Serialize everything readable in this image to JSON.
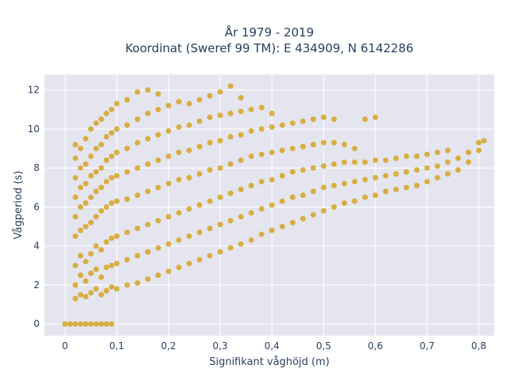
{
  "chart_data": {
    "type": "scatter",
    "title_line1": "År 1979 - 2019",
    "title_line2": "Koordinat (Sweref 99 TM): E 434909, N 6142286",
    "xlabel": "Signifikant våghöjd (m)",
    "ylabel": "Vågperiod (s)",
    "xlim": [
      -0.04,
      0.83
    ],
    "ylim": [
      -0.6,
      12.8
    ],
    "x_ticks": [
      0,
      0.1,
      0.2,
      0.3,
      0.4,
      0.5,
      0.6,
      0.7,
      0.8
    ],
    "x_tick_labels": [
      "0",
      "0,1",
      "0,2",
      "0,3",
      "0,4",
      "0,5",
      "0,6",
      "0,7",
      "0,8"
    ],
    "y_ticks": [
      0,
      2,
      4,
      6,
      8,
      10,
      12
    ],
    "y_tick_labels": [
      "0",
      "2",
      "4",
      "6",
      "8",
      "10",
      "12"
    ],
    "grid": true,
    "point_color": "#d4a017",
    "plot_bgcolor": "#e5e5f0",
    "points": [
      [
        0.0,
        0
      ],
      [
        0.01,
        0
      ],
      [
        0.02,
        0
      ],
      [
        0.03,
        0
      ],
      [
        0.04,
        0
      ],
      [
        0.05,
        0
      ],
      [
        0.06,
        0
      ],
      [
        0.07,
        0
      ],
      [
        0.08,
        0
      ],
      [
        0.09,
        0
      ],
      [
        0.02,
        1.3
      ],
      [
        0.02,
        2.0
      ],
      [
        0.02,
        3.0
      ],
      [
        0.02,
        4.5
      ],
      [
        0.02,
        5.5
      ],
      [
        0.02,
        6.5
      ],
      [
        0.02,
        7.5
      ],
      [
        0.02,
        8.5
      ],
      [
        0.02,
        9.2
      ],
      [
        0.03,
        1.5
      ],
      [
        0.03,
        2.5
      ],
      [
        0.03,
        3.5
      ],
      [
        0.03,
        4.8
      ],
      [
        0.03,
        6.0
      ],
      [
        0.03,
        7.0
      ],
      [
        0.03,
        8.0
      ],
      [
        0.03,
        9.0
      ],
      [
        0.04,
        1.4
      ],
      [
        0.04,
        2.2
      ],
      [
        0.04,
        3.2
      ],
      [
        0.04,
        5.0
      ],
      [
        0.04,
        6.2
      ],
      [
        0.04,
        7.2
      ],
      [
        0.04,
        8.2
      ],
      [
        0.04,
        9.5
      ],
      [
        0.05,
        1.6
      ],
      [
        0.05,
        2.6
      ],
      [
        0.05,
        3.6
      ],
      [
        0.05,
        5.2
      ],
      [
        0.05,
        6.5
      ],
      [
        0.05,
        7.6
      ],
      [
        0.05,
        8.6
      ],
      [
        0.05,
        10.0
      ],
      [
        0.06,
        1.8
      ],
      [
        0.06,
        2.8
      ],
      [
        0.06,
        4.0
      ],
      [
        0.06,
        5.5
      ],
      [
        0.06,
        6.8
      ],
      [
        0.06,
        7.8
      ],
      [
        0.06,
        9.0
      ],
      [
        0.06,
        10.3
      ],
      [
        0.07,
        1.5
      ],
      [
        0.07,
        2.4
      ],
      [
        0.07,
        3.8
      ],
      [
        0.07,
        5.8
      ],
      [
        0.07,
        7.0
      ],
      [
        0.07,
        8.0
      ],
      [
        0.07,
        9.2
      ],
      [
        0.07,
        10.5
      ],
      [
        0.08,
        1.7
      ],
      [
        0.08,
        2.9
      ],
      [
        0.08,
        4.2
      ],
      [
        0.08,
        6.0
      ],
      [
        0.08,
        7.3
      ],
      [
        0.08,
        8.4
      ],
      [
        0.08,
        9.6
      ],
      [
        0.08,
        10.8
      ],
      [
        0.09,
        1.9
      ],
      [
        0.09,
        3.0
      ],
      [
        0.09,
        4.4
      ],
      [
        0.09,
        6.2
      ],
      [
        0.09,
        7.5
      ],
      [
        0.09,
        8.6
      ],
      [
        0.09,
        9.8
      ],
      [
        0.09,
        11.0
      ],
      [
        0.1,
        1.8
      ],
      [
        0.1,
        3.1
      ],
      [
        0.1,
        4.5
      ],
      [
        0.1,
        6.3
      ],
      [
        0.1,
        7.6
      ],
      [
        0.1,
        8.8
      ],
      [
        0.1,
        10.0
      ],
      [
        0.1,
        11.3
      ],
      [
        0.12,
        2.0
      ],
      [
        0.12,
        3.3
      ],
      [
        0.12,
        4.7
      ],
      [
        0.12,
        6.4
      ],
      [
        0.12,
        7.8
      ],
      [
        0.12,
        9.0
      ],
      [
        0.12,
        10.2
      ],
      [
        0.12,
        11.5
      ],
      [
        0.14,
        2.1
      ],
      [
        0.14,
        3.5
      ],
      [
        0.14,
        4.9
      ],
      [
        0.14,
        6.6
      ],
      [
        0.14,
        8.0
      ],
      [
        0.14,
        9.3
      ],
      [
        0.14,
        10.5
      ],
      [
        0.14,
        11.9
      ],
      [
        0.16,
        2.3
      ],
      [
        0.16,
        3.7
      ],
      [
        0.16,
        5.1
      ],
      [
        0.16,
        6.8
      ],
      [
        0.16,
        8.2
      ],
      [
        0.16,
        9.5
      ],
      [
        0.16,
        10.8
      ],
      [
        0.16,
        12.0
      ],
      [
        0.18,
        2.5
      ],
      [
        0.18,
        3.9
      ],
      [
        0.18,
        5.3
      ],
      [
        0.18,
        7.0
      ],
      [
        0.18,
        8.4
      ],
      [
        0.18,
        9.7
      ],
      [
        0.18,
        11.0
      ],
      [
        0.18,
        11.8
      ],
      [
        0.2,
        2.7
      ],
      [
        0.2,
        4.1
      ],
      [
        0.2,
        5.5
      ],
      [
        0.2,
        7.2
      ],
      [
        0.2,
        8.6
      ],
      [
        0.2,
        9.9
      ],
      [
        0.2,
        11.2
      ],
      [
        0.22,
        2.9
      ],
      [
        0.22,
        4.3
      ],
      [
        0.22,
        5.7
      ],
      [
        0.22,
        7.4
      ],
      [
        0.22,
        8.8
      ],
      [
        0.22,
        10.1
      ],
      [
        0.22,
        11.4
      ],
      [
        0.24,
        3.1
      ],
      [
        0.24,
        4.5
      ],
      [
        0.24,
        5.9
      ],
      [
        0.24,
        7.5
      ],
      [
        0.24,
        8.9
      ],
      [
        0.24,
        10.2
      ],
      [
        0.24,
        11.3
      ],
      [
        0.26,
        3.3
      ],
      [
        0.26,
        4.7
      ],
      [
        0.26,
        6.1
      ],
      [
        0.26,
        7.7
      ],
      [
        0.26,
        9.1
      ],
      [
        0.26,
        10.4
      ],
      [
        0.26,
        11.5
      ],
      [
        0.28,
        3.5
      ],
      [
        0.28,
        4.9
      ],
      [
        0.28,
        6.3
      ],
      [
        0.28,
        7.9
      ],
      [
        0.28,
        9.3
      ],
      [
        0.28,
        10.6
      ],
      [
        0.28,
        11.7
      ],
      [
        0.3,
        3.7
      ],
      [
        0.3,
        5.1
      ],
      [
        0.3,
        6.5
      ],
      [
        0.3,
        8.0
      ],
      [
        0.3,
        9.4
      ],
      [
        0.3,
        10.7
      ],
      [
        0.3,
        11.9
      ],
      [
        0.32,
        3.9
      ],
      [
        0.32,
        5.3
      ],
      [
        0.32,
        6.7
      ],
      [
        0.32,
        8.2
      ],
      [
        0.32,
        9.6
      ],
      [
        0.32,
        10.8
      ],
      [
        0.32,
        12.2
      ],
      [
        0.34,
        4.1
      ],
      [
        0.34,
        5.5
      ],
      [
        0.34,
        6.9
      ],
      [
        0.34,
        8.4
      ],
      [
        0.34,
        9.7
      ],
      [
        0.34,
        10.9
      ],
      [
        0.34,
        11.6
      ],
      [
        0.36,
        4.3
      ],
      [
        0.36,
        5.7
      ],
      [
        0.36,
        7.1
      ],
      [
        0.36,
        8.6
      ],
      [
        0.36,
        9.9
      ],
      [
        0.36,
        11.0
      ],
      [
        0.38,
        4.6
      ],
      [
        0.38,
        5.9
      ],
      [
        0.38,
        7.3
      ],
      [
        0.38,
        8.7
      ],
      [
        0.38,
        10.0
      ],
      [
        0.38,
        11.1
      ],
      [
        0.4,
        4.8
      ],
      [
        0.4,
        6.1
      ],
      [
        0.4,
        7.4
      ],
      [
        0.4,
        8.8
      ],
      [
        0.4,
        10.1
      ],
      [
        0.4,
        10.8
      ],
      [
        0.42,
        5.0
      ],
      [
        0.42,
        6.3
      ],
      [
        0.42,
        7.6
      ],
      [
        0.42,
        8.9
      ],
      [
        0.42,
        10.2
      ],
      [
        0.44,
        5.2
      ],
      [
        0.44,
        6.5
      ],
      [
        0.44,
        7.8
      ],
      [
        0.44,
        9.0
      ],
      [
        0.44,
        10.3
      ],
      [
        0.46,
        5.4
      ],
      [
        0.46,
        6.6
      ],
      [
        0.46,
        7.9
      ],
      [
        0.46,
        9.1
      ],
      [
        0.46,
        10.4
      ],
      [
        0.48,
        5.6
      ],
      [
        0.48,
        6.8
      ],
      [
        0.48,
        8.0
      ],
      [
        0.48,
        9.2
      ],
      [
        0.48,
        10.5
      ],
      [
        0.5,
        5.8
      ],
      [
        0.5,
        7.0
      ],
      [
        0.5,
        8.1
      ],
      [
        0.5,
        9.3
      ],
      [
        0.5,
        10.6
      ],
      [
        0.52,
        6.0
      ],
      [
        0.52,
        7.1
      ],
      [
        0.52,
        8.2
      ],
      [
        0.52,
        9.3
      ],
      [
        0.52,
        10.5
      ],
      [
        0.54,
        6.2
      ],
      [
        0.54,
        7.2
      ],
      [
        0.54,
        8.3
      ],
      [
        0.54,
        9.2
      ],
      [
        0.56,
        6.3
      ],
      [
        0.56,
        7.3
      ],
      [
        0.56,
        8.3
      ],
      [
        0.56,
        9.0
      ],
      [
        0.58,
        6.5
      ],
      [
        0.58,
        7.4
      ],
      [
        0.58,
        8.3
      ],
      [
        0.58,
        10.5
      ],
      [
        0.6,
        6.6
      ],
      [
        0.6,
        7.5
      ],
      [
        0.6,
        8.4
      ],
      [
        0.6,
        10.6
      ],
      [
        0.62,
        6.8
      ],
      [
        0.62,
        7.6
      ],
      [
        0.62,
        8.4
      ],
      [
        0.64,
        6.9
      ],
      [
        0.64,
        7.7
      ],
      [
        0.64,
        8.5
      ],
      [
        0.66,
        7.0
      ],
      [
        0.66,
        7.8
      ],
      [
        0.66,
        8.6
      ],
      [
        0.68,
        7.1
      ],
      [
        0.68,
        7.9
      ],
      [
        0.68,
        8.6
      ],
      [
        0.7,
        7.3
      ],
      [
        0.7,
        8.0
      ],
      [
        0.7,
        8.7
      ],
      [
        0.72,
        7.5
      ],
      [
        0.72,
        8.1
      ],
      [
        0.72,
        8.8
      ],
      [
        0.74,
        7.7
      ],
      [
        0.74,
        8.3
      ],
      [
        0.74,
        8.9
      ],
      [
        0.76,
        7.9
      ],
      [
        0.76,
        8.5
      ],
      [
        0.78,
        8.3
      ],
      [
        0.78,
        8.8
      ],
      [
        0.8,
        8.9
      ],
      [
        0.8,
        9.3
      ],
      [
        0.81,
        9.4
      ]
    ]
  }
}
